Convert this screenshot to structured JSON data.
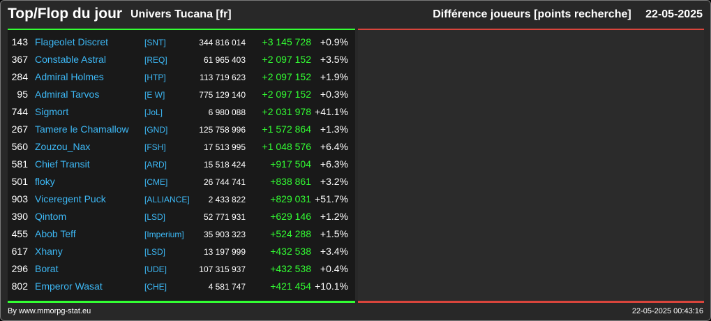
{
  "header": {
    "title": "Top/Flop du jour",
    "subtitle": "Univers Tucana [fr]",
    "metric": "Différence joueurs [points recherche]",
    "date": "22-05-2025"
  },
  "rows": [
    {
      "rank": "143",
      "name": "Flageolet Discret",
      "alliance": "[SNT]",
      "points": "344 816 014",
      "diff": "+3 145 728",
      "pct": "+0.9%"
    },
    {
      "rank": "367",
      "name": "Constable Astral",
      "alliance": "[REQ]",
      "points": "61 965 403",
      "diff": "+2 097 152",
      "pct": "+3.5%"
    },
    {
      "rank": "284",
      "name": "Admiral Holmes",
      "alliance": "[HTP]",
      "points": "113 719 623",
      "diff": "+2 097 152",
      "pct": "+1.9%"
    },
    {
      "rank": "95",
      "name": "Admiral Tarvos",
      "alliance": "[E W]",
      "points": "775 129 140",
      "diff": "+2 097 152",
      "pct": "+0.3%"
    },
    {
      "rank": "744",
      "name": "Sigmort",
      "alliance": "[JoL]",
      "points": "6 980 088",
      "diff": "+2 031 978",
      "pct": "+41.1%"
    },
    {
      "rank": "267",
      "name": "Tamere le Chamallow",
      "alliance": "[GND]",
      "points": "125 758 996",
      "diff": "+1 572 864",
      "pct": "+1.3%"
    },
    {
      "rank": "560",
      "name": "Zouzou_Nax",
      "alliance": "[FSH]",
      "points": "17 513 995",
      "diff": "+1 048 576",
      "pct": "+6.4%"
    },
    {
      "rank": "581",
      "name": "Chief Transit",
      "alliance": "[ARD]",
      "points": "15 518 424",
      "diff": "+917 504",
      "pct": "+6.3%"
    },
    {
      "rank": "501",
      "name": "floky",
      "alliance": "[CME]",
      "points": "26 744 741",
      "diff": "+838 861",
      "pct": "+3.2%"
    },
    {
      "rank": "903",
      "name": "Viceregent Puck",
      "alliance": "[ALLIANCE]",
      "points": "2 433 822",
      "diff": "+829 031",
      "pct": "+51.7%"
    },
    {
      "rank": "390",
      "name": "Qintom",
      "alliance": "[LSD]",
      "points": "52 771 931",
      "diff": "+629 146",
      "pct": "+1.2%"
    },
    {
      "rank": "455",
      "name": "Abob Teff",
      "alliance": "[Imperium]",
      "points": "35 903 323",
      "diff": "+524 288",
      "pct": "+1.5%"
    },
    {
      "rank": "617",
      "name": "Xhany",
      "alliance": "[LSD]",
      "points": "13 197 999",
      "diff": "+432 538",
      "pct": "+3.4%"
    },
    {
      "rank": "296",
      "name": "Borat",
      "alliance": "[UDE]",
      "points": "107 315 937",
      "diff": "+432 538",
      "pct": "+0.4%"
    },
    {
      "rank": "802",
      "name": "Emperor Wasat",
      "alliance": "[CHE]",
      "points": "4 581 747",
      "diff": "+421 454",
      "pct": "+10.1%"
    }
  ],
  "footer": {
    "credit": "By www.mmorpg-stat.eu",
    "timestamp": "22-05-2025 00:43:16"
  },
  "colors": {
    "background": "#282828",
    "panel": "#191919",
    "name": "#3db8f5",
    "gain": "#33ff33",
    "accent_top": "#33ff33",
    "accent_flop": "#d9453c"
  }
}
